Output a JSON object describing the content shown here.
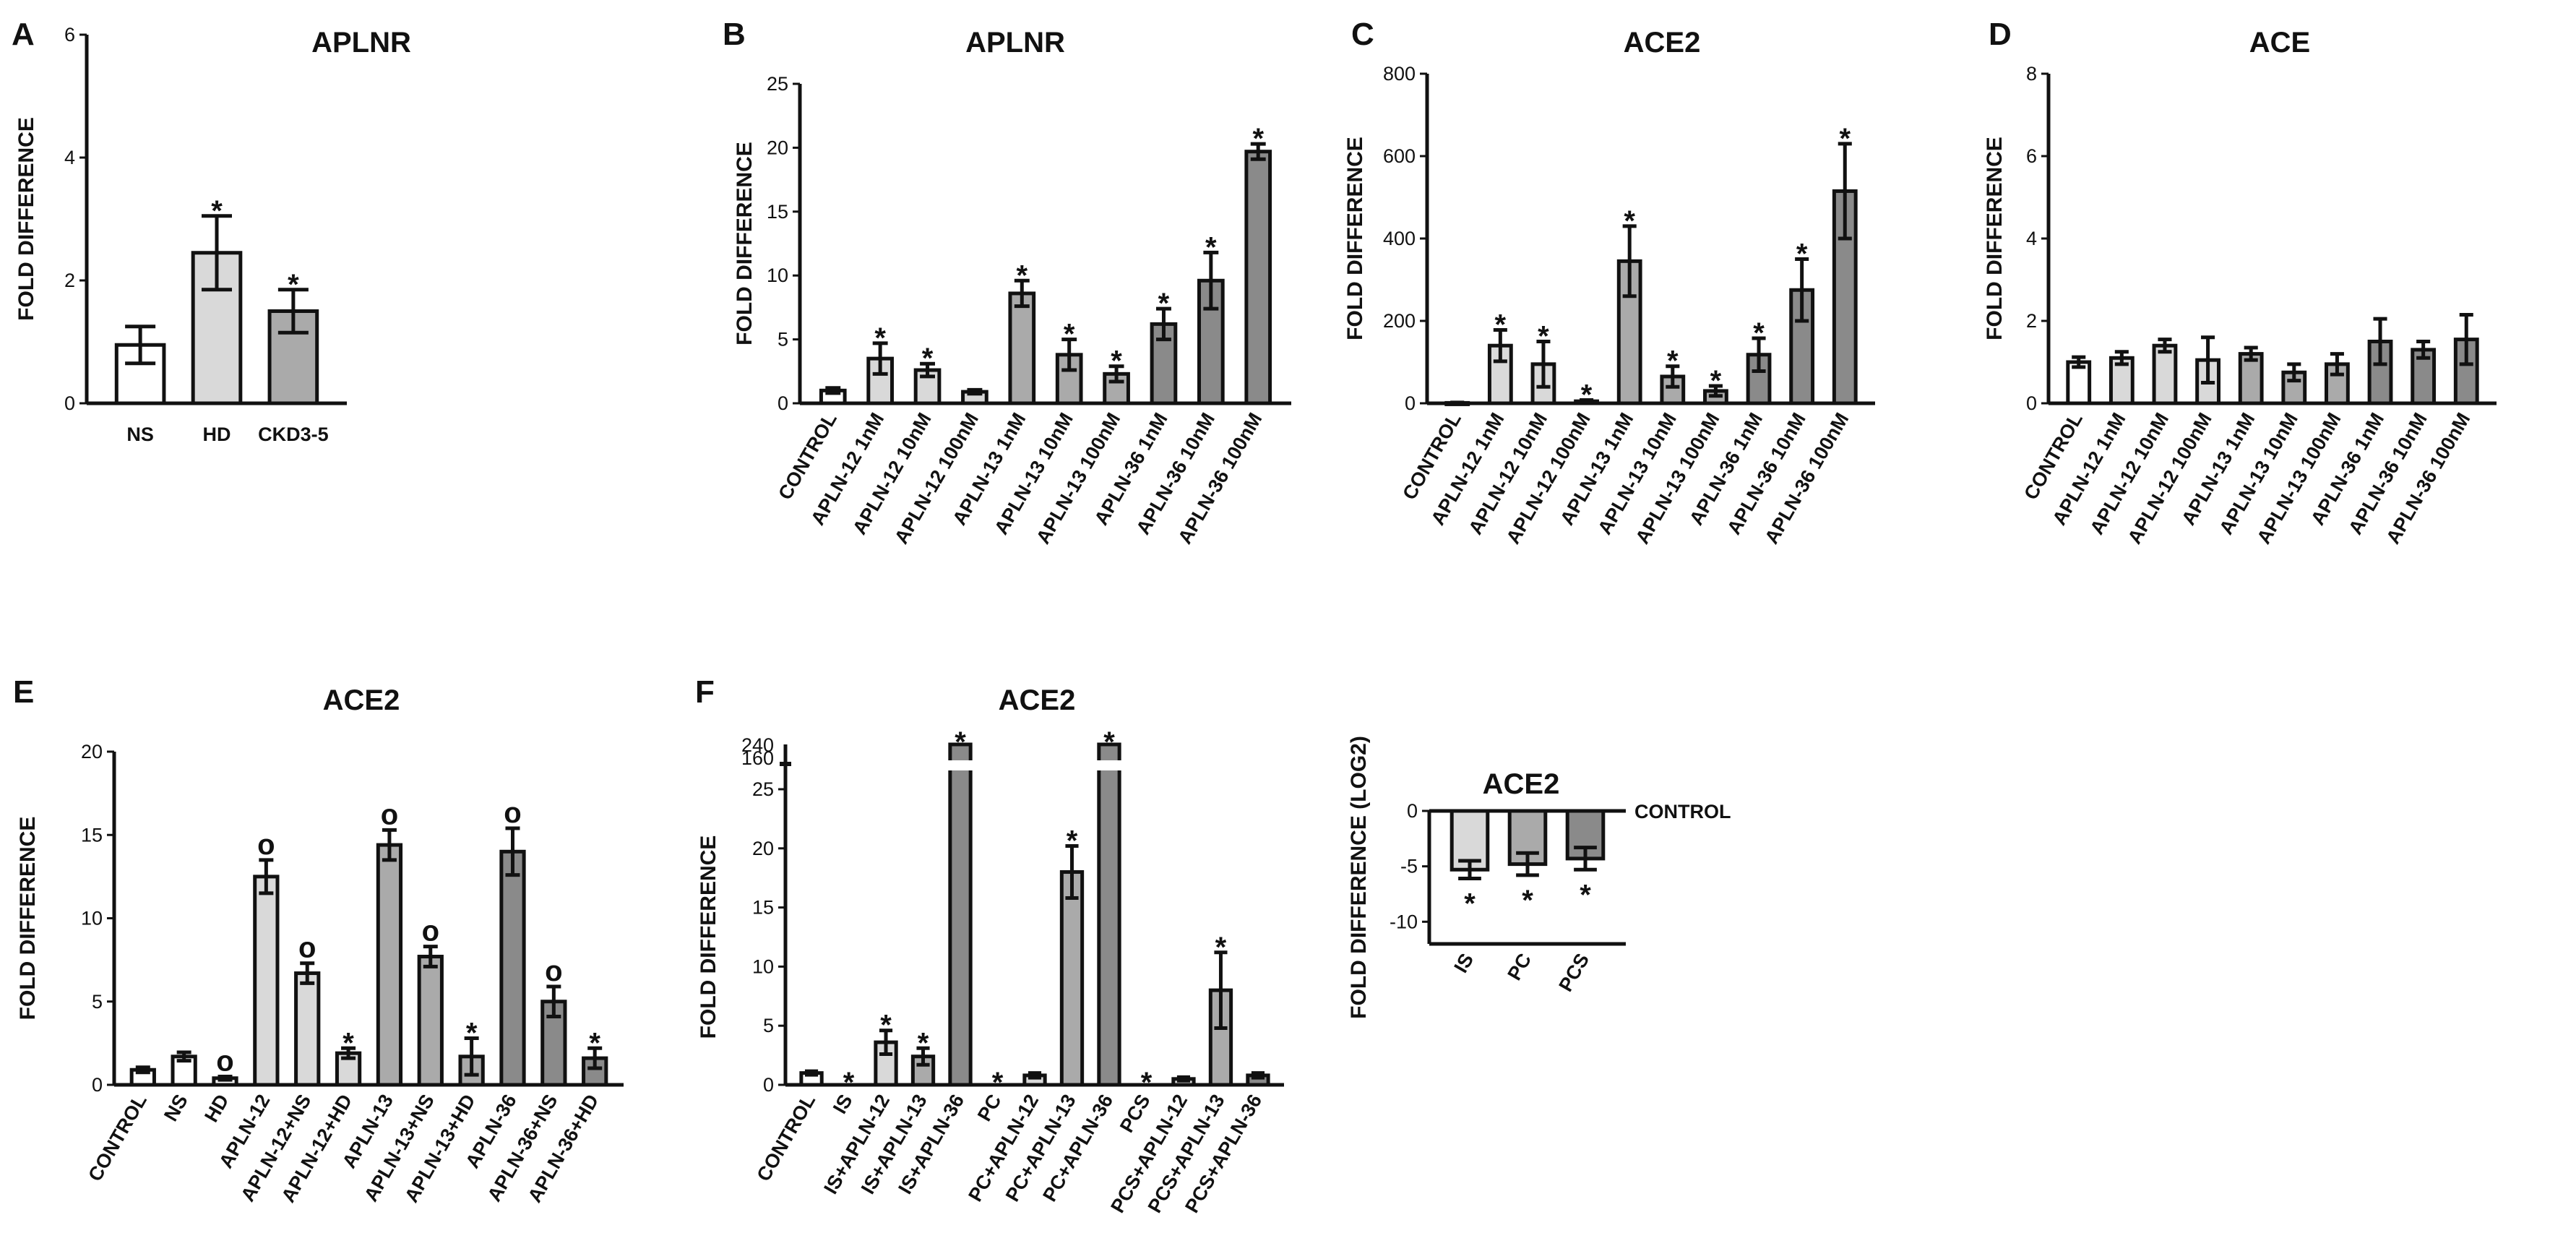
{
  "figure": {
    "colors": {
      "white": "#ffffff",
      "light": "#d9d9d9",
      "mid": "#aaaaaa",
      "dark": "#8a8a8a",
      "line": "#111111"
    }
  },
  "chart_data": [
    {
      "panel": "A",
      "type": "bar",
      "title": "APLNR",
      "ylabel": "FOLD DIFFERENCE",
      "ylim": [
        0,
        6
      ],
      "yticks": [
        0,
        2,
        4,
        6
      ],
      "categories": [
        "NS",
        "HD",
        "CKD3-5"
      ],
      "values": [
        0.95,
        2.45,
        1.5
      ],
      "errors": [
        0.3,
        0.6,
        0.35
      ],
      "fills": [
        "white",
        "light",
        "mid"
      ],
      "marks": [
        "",
        "*",
        "*"
      ]
    },
    {
      "panel": "B",
      "type": "bar",
      "title": "APLNR",
      "ylabel": "FOLD DIFFERENCE",
      "ylim": [
        0,
        25
      ],
      "yticks": [
        0,
        5,
        10,
        15,
        20,
        25
      ],
      "categories": [
        "CONTROL",
        "APLN-12 1nM",
        "APLN-12 10nM",
        "APLN-12 100nM",
        "APLN-13 1nM",
        "APLN-13 10nM",
        "APLN-13 100nM",
        "APLN-36 1nM",
        "APLN-36 10nM",
        "APLN-36 100nM"
      ],
      "values": [
        1.0,
        3.5,
        2.6,
        0.9,
        8.6,
        3.8,
        2.3,
        6.2,
        9.6,
        19.7
      ],
      "errors": [
        0.2,
        1.2,
        0.5,
        0.15,
        1.0,
        1.2,
        0.6,
        1.2,
        2.2,
        0.6
      ],
      "fills": [
        "white",
        "light",
        "light",
        "light",
        "mid",
        "mid",
        "mid",
        "dark",
        "dark",
        "dark"
      ],
      "marks": [
        "",
        "*",
        "*",
        "",
        "*",
        "*",
        "*",
        "*",
        "*",
        "*"
      ]
    },
    {
      "panel": "C",
      "type": "bar",
      "title": "ACE2",
      "ylabel": "FOLD DIFFERENCE",
      "ylim": [
        0,
        800
      ],
      "yticks": [
        0,
        200,
        400,
        600,
        800
      ],
      "categories": [
        "CONTROL",
        "APLN-12 1nM",
        "APLN-12 10nM",
        "APLN-12 100nM",
        "APLN-13 1nM",
        "APLN-13 10nM",
        "APLN-13 100nM",
        "APLN-36 1nM",
        "APLN-36 10nM",
        "APLN-36 100nM"
      ],
      "values": [
        1,
        140,
        95,
        5,
        345,
        65,
        30,
        118,
        275,
        515
      ],
      "errors": [
        1,
        38,
        55,
        3,
        85,
        25,
        12,
        40,
        75,
        115
      ],
      "fills": [
        "white",
        "light",
        "light",
        "light",
        "mid",
        "mid",
        "mid",
        "dark",
        "dark",
        "dark"
      ],
      "marks": [
        "",
        "*",
        "*",
        "*",
        "*",
        "*",
        "*",
        "*",
        "*",
        "*"
      ]
    },
    {
      "panel": "D",
      "type": "bar",
      "title": "ACE",
      "ylabel": "FOLD DIFFERENCE",
      "ylim": [
        0,
        8
      ],
      "yticks": [
        0,
        2,
        4,
        6,
        8
      ],
      "categories": [
        "CONTROL",
        "APLN-12 1nM",
        "APLN-12 10nM",
        "APLN-12 100nM",
        "APLN-13 1nM",
        "APLN-13 10nM",
        "APLN-13 100nM",
        "APLN-36 1nM",
        "APLN-36 10nM",
        "APLN-36 100nM"
      ],
      "values": [
        1.0,
        1.1,
        1.4,
        1.05,
        1.2,
        0.75,
        0.95,
        1.5,
        1.3,
        1.55
      ],
      "errors": [
        0.12,
        0.15,
        0.15,
        0.55,
        0.15,
        0.2,
        0.25,
        0.55,
        0.2,
        0.6
      ],
      "fills": [
        "white",
        "light",
        "light",
        "light",
        "mid",
        "mid",
        "mid",
        "dark",
        "dark",
        "dark"
      ],
      "marks": [
        "",
        "",
        "",
        "",
        "",
        "",
        "",
        "",
        "",
        ""
      ]
    },
    {
      "panel": "E",
      "type": "bar",
      "title": "ACE2",
      "ylabel": "FOLD DIFFERENCE",
      "ylim": [
        0,
        20
      ],
      "yticks": [
        0,
        5,
        10,
        15,
        20
      ],
      "categories": [
        "CONTROL",
        "NS",
        "HD",
        "APLN-12",
        "APLN-12+NS",
        "APLN-12+HD",
        "APLN-13",
        "APLN-13+NS",
        "APLN-13+HD",
        "APLN-36",
        "APLN-36+NS",
        "APLN-36+HD"
      ],
      "values": [
        0.9,
        1.7,
        0.4,
        12.5,
        6.7,
        1.9,
        14.4,
        7.7,
        1.7,
        14.0,
        5.0,
        1.6
      ],
      "errors": [
        0.15,
        0.25,
        0.1,
        1.0,
        0.6,
        0.3,
        0.9,
        0.6,
        1.1,
        1.4,
        0.9,
        0.6
      ],
      "fills": [
        "white",
        "white",
        "white",
        "light",
        "light",
        "light",
        "mid",
        "mid",
        "mid",
        "dark",
        "dark",
        "dark"
      ],
      "marks": [
        "",
        "",
        "o",
        "o",
        "o",
        "*",
        "o",
        "o",
        "*",
        "o",
        "o",
        "*"
      ]
    },
    {
      "panel": "F",
      "type": "bar",
      "title": "ACE2",
      "ylabel": "FOLD DIFFERENCE",
      "ylim": [
        0,
        25
      ],
      "yticks": [
        0,
        5,
        10,
        15,
        20,
        25
      ],
      "axis_break_ticks": [
        160,
        240
      ],
      "categories": [
        "CONTROL",
        "IS",
        "IS+APLN-12",
        "IS+APLN-13",
        "IS+APLN-36",
        "PC",
        "PC+APLN-12",
        "PC+APLN-13",
        "PC+APLN-36",
        "PCS",
        "PCS+APLN-12",
        "PCS+APLN-13",
        "PCS+APLN-36"
      ],
      "values": [
        1.0,
        0,
        3.6,
        2.4,
        25,
        0,
        0.8,
        18.0,
        25,
        0,
        0.5,
        8.0,
        0.8
      ],
      "errors": [
        0.15,
        0,
        1.0,
        0.7,
        0,
        0,
        0.2,
        2.2,
        0,
        0,
        0.15,
        3.2,
        0.2
      ],
      "broken": [
        false,
        false,
        false,
        false,
        true,
        false,
        false,
        false,
        true,
        false,
        false,
        false,
        false
      ],
      "fills": [
        "white",
        "white",
        "light",
        "mid",
        "dark",
        "white",
        "light",
        "mid",
        "dark",
        "white",
        "light",
        "mid",
        "dark"
      ],
      "marks": [
        "",
        "*",
        "*",
        "*",
        "*",
        "*",
        "",
        "*",
        "*",
        "*",
        "",
        "*",
        ""
      ]
    },
    {
      "panel": "inset",
      "type": "bar",
      "title": "ACE2",
      "ylabel": "FOLD DIFFERENCE (LOG2)",
      "ylim": [
        -12,
        0
      ],
      "yticks": [
        0,
        -5,
        -10
      ],
      "reference_label": "CONTROL",
      "categories": [
        "IS",
        "PC",
        "PCS"
      ],
      "values": [
        -5.3,
        -4.8,
        -4.3
      ],
      "errors": [
        0.8,
        1.0,
        1.0
      ],
      "fills": [
        "light",
        "mid",
        "dark"
      ],
      "marks": [
        "*",
        "*",
        "*"
      ]
    }
  ]
}
